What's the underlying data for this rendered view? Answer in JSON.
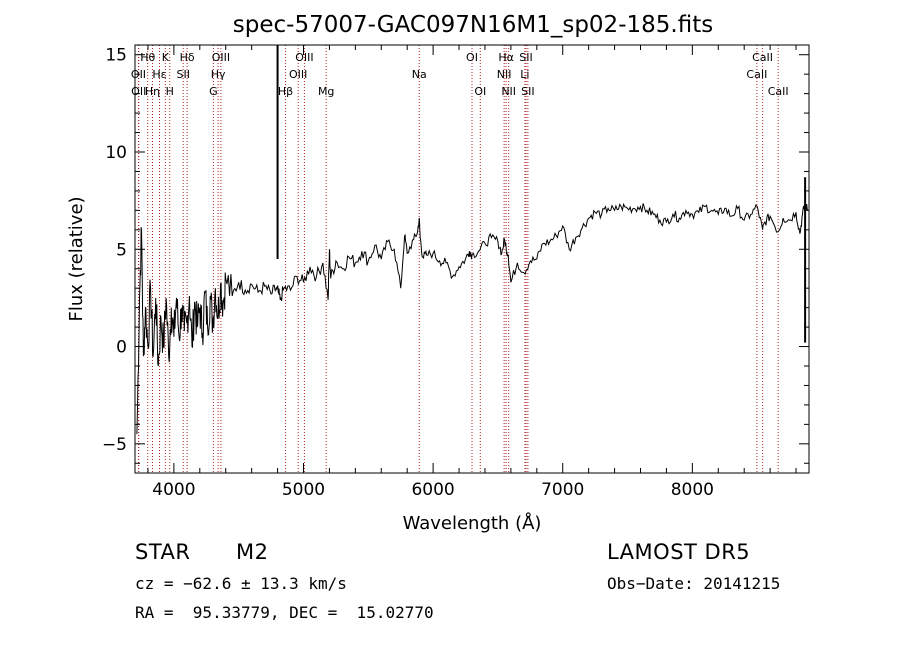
{
  "chart_data": {
    "type": "line",
    "title": "spec-57007-GAC097N16M1_sp02-185.fits",
    "xlabel": "Wavelength (Å)",
    "ylabel": "Flux (relative)",
    "xlim": [
      3700,
      8900
    ],
    "ylim": [
      -6.5,
      15.5
    ],
    "xticks": [
      4000,
      5000,
      6000,
      7000,
      8000
    ],
    "xtick_labels": [
      "4000",
      "5000",
      "6000",
      "7000",
      "8000"
    ],
    "yticks": [
      -5,
      0,
      5,
      10,
      15
    ],
    "ytick_labels": [
      "−5",
      "0",
      "5",
      "10",
      "15"
    ],
    "series": [
      {
        "name": "flux",
        "x": [
          3715,
          3735,
          3750,
          3765,
          3780,
          3800,
          3820,
          3840,
          3860,
          3880,
          3900,
          3920,
          3940,
          3960,
          3980,
          4000,
          4020,
          4040,
          4060,
          4080,
          4100,
          4120,
          4140,
          4160,
          4180,
          4200,
          4220,
          4240,
          4260,
          4280,
          4300,
          4320,
          4340,
          4360,
          4380,
          4400,
          4450,
          4500,
          4550,
          4600,
          4650,
          4700,
          4750,
          4790,
          4805,
          4820,
          4850,
          4900,
          4950,
          5000,
          5050,
          5100,
          5150,
          5190,
          5200,
          5210,
          5250,
          5300,
          5350,
          5400,
          5450,
          5500,
          5550,
          5600,
          5650,
          5700,
          5750,
          5780,
          5800,
          5850,
          5880,
          5893,
          5900,
          5920,
          5950,
          6000,
          6050,
          6100,
          6150,
          6200,
          6250,
          6280,
          6300,
          6350,
          6400,
          6450,
          6500,
          6530,
          6550,
          6563,
          6580,
          6600,
          6650,
          6700,
          6750,
          6800,
          6850,
          6900,
          6950,
          7000,
          7050,
          7100,
          7150,
          7200,
          7250,
          7300,
          7350,
          7400,
          7450,
          7500,
          7550,
          7600,
          7650,
          7700,
          7750,
          7800,
          7850,
          7900,
          7950,
          8000,
          8050,
          8100,
          8150,
          8200,
          8250,
          8300,
          8350,
          8400,
          8450,
          8500,
          8542,
          8560,
          8600,
          8662,
          8700,
          8750,
          8800,
          8830,
          8850,
          8870,
          8890
        ],
        "y": [
          -4.5,
          2.5,
          6.0,
          -0.5,
          2.0,
          0.0,
          3.0,
          -0.5,
          2.5,
          -1.0,
          1.5,
          0.0,
          2.5,
          -0.5,
          2.0,
          0.5,
          2.5,
          0.5,
          2.0,
          0.8,
          1.2,
          2.6,
          0.0,
          2.3,
          1.0,
          2.0,
          0.7,
          2.8,
          1.0,
          2.6,
          1.2,
          3.0,
          1.6,
          3.2,
          2.2,
          3.5,
          2.6,
          3.3,
          2.9,
          3.2,
          2.8,
          3.1,
          2.7,
          3.0,
          2.8,
          2.4,
          3.0,
          2.9,
          3.6,
          3.3,
          4.1,
          3.6,
          4.3,
          2.4,
          5.0,
          3.5,
          4.4,
          4.0,
          4.6,
          4.3,
          4.9,
          4.4,
          5.2,
          4.5,
          5.4,
          5.0,
          3.0,
          5.7,
          4.8,
          5.5,
          5.9,
          6.6,
          5.6,
          4.6,
          4.7,
          4.8,
          4.4,
          4.3,
          3.6,
          4.1,
          4.5,
          4.9,
          4.7,
          4.9,
          5.3,
          5.6,
          5.4,
          4.8,
          5.5,
          5.1,
          4.7,
          3.3,
          4.3,
          3.8,
          4.4,
          4.5,
          5.3,
          5.4,
          5.7,
          6.2,
          5.0,
          5.6,
          6.1,
          6.6,
          6.9,
          6.8,
          7.1,
          7.0,
          7.2,
          7.1,
          7.1,
          7.2,
          7.0,
          6.8,
          6.5,
          6.4,
          6.8,
          6.6,
          7.0,
          6.8,
          6.9,
          7.2,
          7.0,
          6.8,
          7.1,
          6.7,
          7.1,
          6.5,
          6.8,
          7.2,
          6.0,
          6.4,
          6.7,
          5.9,
          6.6,
          6.5,
          6.9,
          5.8,
          6.8,
          7.3,
          7.0
        ]
      }
    ],
    "spikes": [
      {
        "x": 4800,
        "y_top": 15.5,
        "y_bottom": 4.5
      },
      {
        "x": 8870,
        "y_top": 8.7,
        "y_bottom": 0.2
      }
    ],
    "lines": [
      {
        "label": "Hθ",
        "wavelength": 3798,
        "row": 0
      },
      {
        "label": "OII",
        "wavelength": 3727,
        "row": 1
      },
      {
        "label": "OII",
        "wavelength": 3729,
        "row": 2
      },
      {
        "label": "Hε",
        "wavelength": 3889,
        "row": 1
      },
      {
        "label": "Hη",
        "wavelength": 3835,
        "row": 2
      },
      {
        "label": "K",
        "wavelength": 3934,
        "row": 0
      },
      {
        "label": "H",
        "wavelength": 3968,
        "row": 2
      },
      {
        "label": "Hδ",
        "wavelength": 4102,
        "row": 0
      },
      {
        "label": "SII",
        "wavelength": 4072,
        "row": 1
      },
      {
        "label": "OIII",
        "wavelength": 4363,
        "row": 0
      },
      {
        "label": "Hγ",
        "wavelength": 4341,
        "row": 1
      },
      {
        "label": "G",
        "wavelength": 4305,
        "row": 2
      },
      {
        "label": "Hβ",
        "wavelength": 4861,
        "row": 2
      },
      {
        "label": "OIII",
        "wavelength": 5007,
        "row": 0
      },
      {
        "label": "OIII",
        "wavelength": 4959,
        "row": 1
      },
      {
        "label": "Mg",
        "wavelength": 5175,
        "row": 2
      },
      {
        "label": "Na",
        "wavelength": 5893,
        "row": 1
      },
      {
        "label": "OI",
        "wavelength": 6300,
        "row": 0
      },
      {
        "label": "OI",
        "wavelength": 6364,
        "row": 2
      },
      {
        "label": "Hα",
        "wavelength": 6563,
        "row": 0
      },
      {
        "label": "NII",
        "wavelength": 6548,
        "row": 1
      },
      {
        "label": "NII",
        "wavelength": 6583,
        "row": 2
      },
      {
        "label": "SII",
        "wavelength": 6717,
        "row": 0
      },
      {
        "label": "Li",
        "wavelength": 6708,
        "row": 1
      },
      {
        "label": "SII",
        "wavelength": 6731,
        "row": 2
      },
      {
        "label": "CaII",
        "wavelength": 8542,
        "row": 0
      },
      {
        "label": "CaII",
        "wavelength": 8498,
        "row": 1
      },
      {
        "label": "CaII",
        "wavelength": 8662,
        "row": 2
      }
    ],
    "colors": {
      "line": "#000000",
      "marker": "#b22222",
      "background": "#ffffff"
    }
  },
  "info": {
    "class": "STAR",
    "subclass": "M2",
    "survey": "LAMOST DR5",
    "cz": "cz = −62.6 ± 13.3 km/s",
    "obs_date": "Obs−Date: 20141215",
    "coords": "RA =  95.33779, DEC =  15.02770"
  }
}
